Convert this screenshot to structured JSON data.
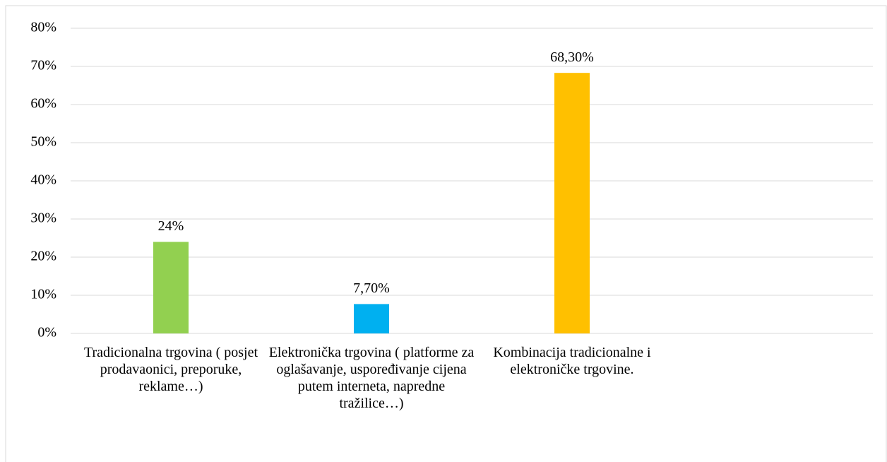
{
  "chart_data": {
    "type": "bar",
    "categories": [
      "Tradicionalna trgovina ( posjet prodavaonici, preporuke, reklame…)",
      "Elektronička trgovina ( platforme za oglašavanje, uspoređivanje cijena putem interneta, napredne tražilice…)",
      "Kombinacija tradicionalne i elektroničke trgovine.",
      null
    ],
    "values": [
      24,
      7.7,
      68.3,
      null
    ],
    "value_labels": [
      "24%",
      "7,70%",
      "68,30%",
      null
    ],
    "colors": [
      "#92d050",
      "#00b0f0",
      "#ffc000",
      null
    ],
    "ylim": [
      0,
      80
    ],
    "yticks": [
      {
        "value": 0,
        "label": "0%"
      },
      {
        "value": 10,
        "label": "10%"
      },
      {
        "value": 20,
        "label": "20%"
      },
      {
        "value": 30,
        "label": "30%"
      },
      {
        "value": 40,
        "label": "40%"
      },
      {
        "value": 50,
        "label": "50%"
      },
      {
        "value": 60,
        "label": "60%"
      },
      {
        "value": 70,
        "label": "70%"
      },
      {
        "value": 80,
        "label": "80%"
      }
    ],
    "grid": true
  }
}
